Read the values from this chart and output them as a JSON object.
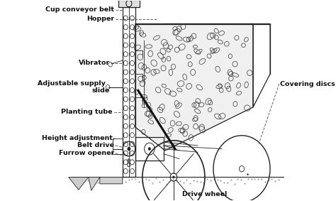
{
  "labels": {
    "cup_conveyor_belt": "Cup conveyor belt",
    "hopper": "Hopper",
    "vibrator": "Vibrator",
    "adjustable_supply_slide": "Adjustable supply\n     slide",
    "planting_tube": "Planting tube",
    "height_adjustment": "Height adjustment",
    "belt_drive": "Belt drive",
    "furrow_opener": "Furrow opener",
    "covering_discs": "Covering discs",
    "drive_wheel": "Drive wheel"
  },
  "bg_color": "#ffffff",
  "line_color": "#222222",
  "text_color": "#111111",
  "label_fontsize": 6.8,
  "figsize": [
    4.74,
    2.83
  ],
  "dpi": 100
}
